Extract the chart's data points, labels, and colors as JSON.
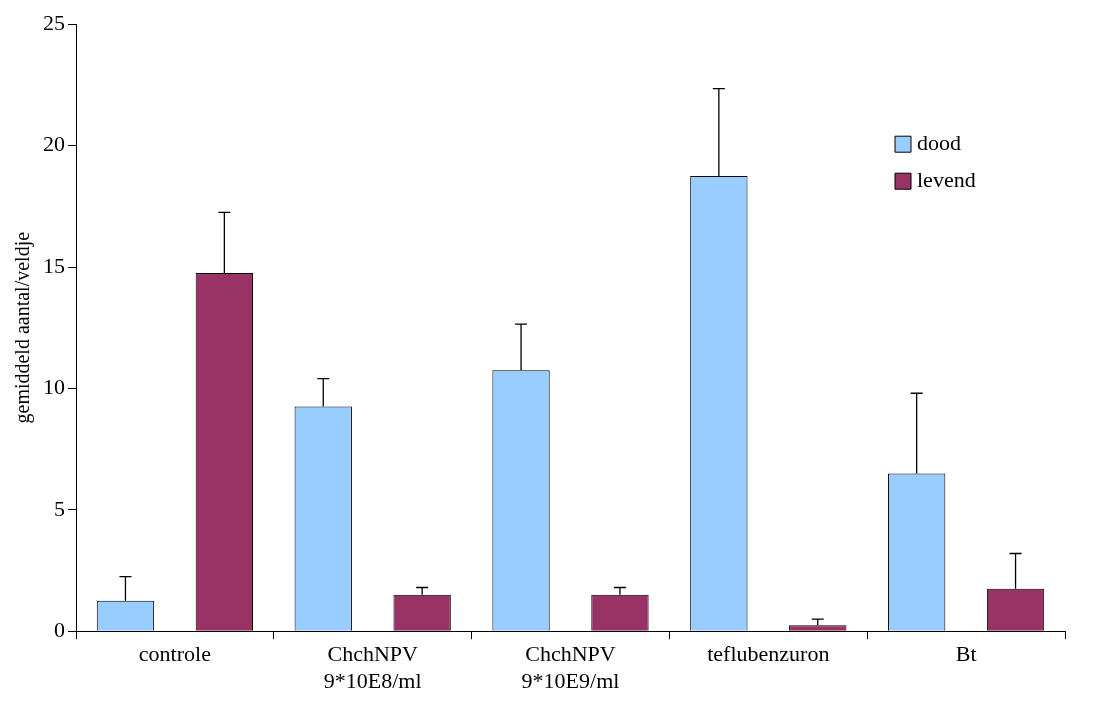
{
  "chart_data": {
    "type": "bar",
    "ylabel": "gemiddeld aantal/veldje",
    "categories": [
      "controle",
      "ChchNPV\n9*10E8/ml",
      "ChchNPV\n9*10E9/ml",
      "teflubenzuron",
      "Bt"
    ],
    "series": [
      {
        "name": "dood",
        "color": "#99ccff",
        "values": [
          1.25,
          9.25,
          10.75,
          18.75,
          6.5
        ],
        "errors": [
          [
            1.25,
            2.25
          ],
          [
            9.25,
            10.4
          ],
          [
            10.75,
            12.65
          ],
          [
            18.75,
            22.35
          ],
          [
            6.5,
            9.8
          ]
        ]
      },
      {
        "name": "levend",
        "color": "#993366",
        "values": [
          14.75,
          1.5,
          1.5,
          0.25,
          1.75
        ],
        "errors": [
          [
            14.75,
            17.25
          ],
          [
            1.5,
            1.8
          ],
          [
            1.5,
            1.8
          ],
          [
            0.25,
            0.5
          ],
          [
            1.75,
            3.2
          ]
        ]
      }
    ],
    "ylim": [
      0,
      25
    ],
    "yticks": [
      0,
      5,
      10,
      15,
      20,
      25
    ],
    "grid": false,
    "legend": "top right"
  }
}
